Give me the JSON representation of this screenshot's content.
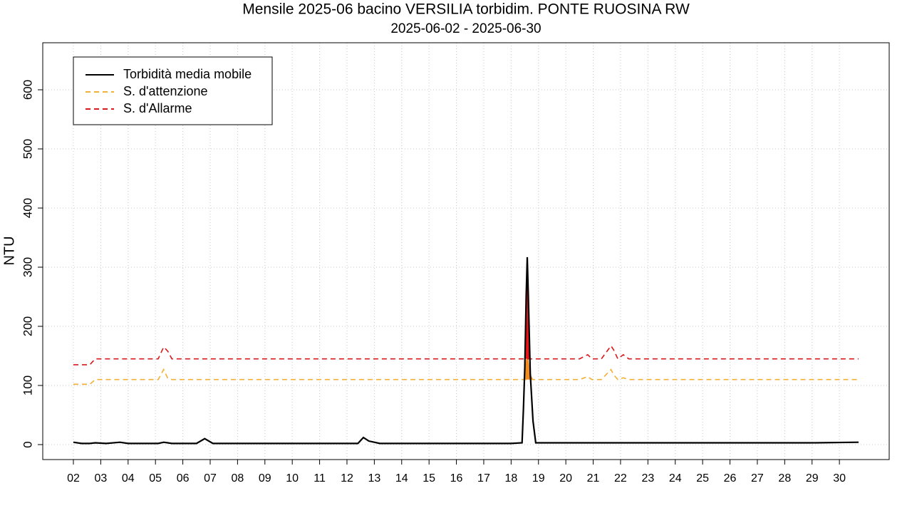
{
  "chart_data": {
    "type": "line",
    "title": "Mensile 2025-06 bacino VERSILIA torbidim. PONTE RUOSINA RW",
    "subtitle": "2025-06-02 - 2025-06-30",
    "y_label": "NTU",
    "x": [
      2.0,
      2.3,
      2.6,
      2.8,
      3.2,
      3.7,
      4.0,
      4.5,
      5.1,
      5.3,
      5.45,
      5.6,
      6.0,
      6.5,
      6.8,
      7.1,
      8,
      9,
      10,
      11,
      12,
      12.4,
      12.6,
      12.8,
      13.2,
      14,
      15,
      16,
      17,
      18,
      18.4,
      18.45,
      18.5,
      18.55,
      18.59,
      18.63,
      18.7,
      18.8,
      18.9,
      19.5,
      20.5,
      20.8,
      20.95,
      21.3,
      21.65,
      21.75,
      21.9,
      22.1,
      22.3,
      23,
      25,
      27,
      29,
      30.7
    ],
    "series": [
      {
        "name": "Torbidità media mobile",
        "color": "#000000",
        "linetype": "solid",
        "values": [
          4,
          2,
          2,
          3,
          2,
          4,
          2,
          2,
          2,
          4,
          3,
          2,
          2,
          2,
          10,
          2,
          2,
          2,
          2,
          2,
          2,
          2,
          12,
          6,
          2,
          2,
          2,
          2,
          2,
          2,
          3,
          60,
          130,
          250,
          317,
          250,
          120,
          40,
          3,
          3,
          3,
          3,
          3,
          3,
          3,
          3,
          3,
          3,
          3,
          3,
          3,
          3,
          3,
          4
        ]
      },
      {
        "name": "S. d'attenzione",
        "color": "#f2b035",
        "linetype": "dashed",
        "fill_color": "#f28c1e",
        "values": [
          102,
          102,
          102,
          110,
          110,
          110,
          110,
          110,
          110,
          127,
          112,
          110,
          110,
          110,
          110,
          110,
          110,
          110,
          110,
          110,
          110,
          110,
          110,
          110,
          110,
          110,
          110,
          110,
          110,
          110,
          110,
          110,
          110,
          110,
          110,
          110,
          110,
          110,
          110,
          110,
          110,
          115,
          110,
          110,
          127,
          118,
          110,
          113,
          110,
          110,
          110,
          110,
          110,
          110
        ]
      },
      {
        "name": "S. d'Allarme",
        "color": "#d7191c",
        "linetype": "dashed",
        "fill_color": "#e8141a",
        "values": [
          135,
          135,
          135,
          145,
          145,
          145,
          145,
          145,
          145,
          165,
          158,
          145,
          145,
          145,
          145,
          145,
          145,
          145,
          145,
          145,
          145,
          145,
          145,
          145,
          145,
          145,
          145,
          145,
          145,
          145,
          145,
          145,
          145,
          145,
          145,
          145,
          145,
          145,
          145,
          145,
          145,
          152,
          145,
          145,
          167,
          160,
          145,
          152,
          145,
          145,
          145,
          145,
          145,
          145
        ]
      }
    ],
    "xlim": [
      0.88,
      31.82
    ],
    "xticks": [
      {
        "value": 2,
        "label": "02"
      },
      {
        "value": 3,
        "label": "03"
      },
      {
        "value": 4,
        "label": "04"
      },
      {
        "value": 5,
        "label": "05"
      },
      {
        "value": 6,
        "label": "06"
      },
      {
        "value": 7,
        "label": "07"
      },
      {
        "value": 8,
        "label": "08"
      },
      {
        "value": 9,
        "label": "09"
      },
      10,
      11,
      12,
      13,
      14,
      15,
      16,
      17,
      18,
      19,
      20,
      21,
      22,
      23,
      24,
      25,
      26,
      27,
      28,
      29,
      30
    ],
    "ylim": [
      -25.3,
      679.5
    ],
    "yticks": [
      0,
      100,
      200,
      300,
      400,
      500,
      600
    ],
    "grid": true,
    "legend_position": "top-left"
  }
}
